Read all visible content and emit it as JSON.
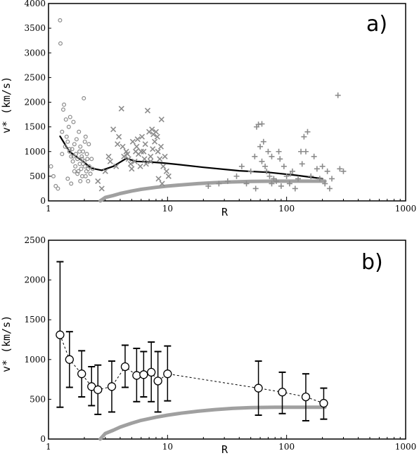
{
  "colors": {
    "data_gray": "#8c8c8c",
    "curve_gray": "#a0a0a0",
    "ink": "#000000"
  },
  "chart_data": [
    {
      "type": "scatter",
      "panel_label": "a)",
      "xlabel": "R",
      "ylabel": "v*  (km/s)",
      "xscale": "log",
      "xlim": [
        1,
        1000
      ],
      "ylim": [
        0,
        4000
      ],
      "xticks": [
        1,
        10,
        100,
        1000
      ],
      "xtick_labels": [
        "1",
        "10",
        "100",
        "1000"
      ],
      "yticks": [
        0,
        500,
        1000,
        1500,
        2000,
        2500,
        3000,
        3500,
        4000
      ],
      "ytick_labels": [
        "0",
        "500",
        "1000",
        "1500",
        "2000",
        "2500",
        "3000",
        "3500",
        "4000"
      ],
      "series": [
        {
          "marker": "circle",
          "x": [
            1.25,
            1.26,
            1.3,
            1.33,
            1.35,
            1.4,
            1.42,
            1.45,
            1.48,
            1.5,
            1.52,
            1.55,
            1.58,
            1.6,
            1.62,
            1.65,
            1.68,
            1.7,
            1.72,
            1.75,
            1.78,
            1.8,
            1.83,
            1.85,
            1.88,
            1.9,
            1.92,
            1.95,
            1.98,
            2.0,
            2.02,
            2.05,
            2.08,
            2.1,
            2.12,
            2.15,
            2.2,
            2.25,
            2.3,
            2.35,
            1.05,
            1.1,
            1.15,
            1.2,
            1.45,
            1.55,
            1.65,
            1.75,
            1.85,
            1.95,
            2.05,
            2.15,
            1.38,
            1.62,
            1.82,
            1.92,
            2.02,
            2.18,
            1.3,
            1.5
          ],
          "y": [
            3660,
            3190,
            1400,
            1850,
            1950,
            1650,
            1300,
            1200,
            1500,
            1000,
            1700,
            900,
            1050,
            800,
            1600,
            1150,
            700,
            950,
            1250,
            850,
            600,
            1400,
            750,
            1100,
            650,
            900,
            500,
            1000,
            2080,
            800,
            700,
            1300,
            600,
            950,
            850,
            400,
            700,
            550,
            850,
            650,
            700,
            500,
            300,
            250,
            450,
            350,
            600,
            550,
            400,
            750,
            500,
            650,
            1100,
            900,
            1000,
            850,
            1200,
            1150,
            950,
            1050
          ]
        },
        {
          "marker": "x",
          "x": [
            2.6,
            2.8,
            3.0,
            3.3,
            3.5,
            3.7,
            3.9,
            4.1,
            4.3,
            4.5,
            4.7,
            4.9,
            5.1,
            5.3,
            5.5,
            5.7,
            5.9,
            6.1,
            6.3,
            6.5,
            6.8,
            7.0,
            7.2,
            7.5,
            7.8,
            8.0,
            8.3,
            8.6,
            8.9,
            9.2,
            9.5,
            9.8,
            10.2,
            4.2,
            5.0,
            6.0,
            7.2,
            8.2,
            9.0,
            3.2,
            3.8,
            4.6,
            5.6,
            6.6,
            7.6,
            8.8,
            5.4,
            6.4,
            7.4,
            8.4
          ],
          "y": [
            400,
            250,
            600,
            800,
            1450,
            700,
            1300,
            1870,
            900,
            1000,
            850,
            750,
            1200,
            800,
            1100,
            950,
            700,
            1300,
            1000,
            1150,
            1830,
            1400,
            900,
            1050,
            1200,
            1400,
            1000,
            850,
            1650,
            700,
            900,
            600,
            500,
            1100,
            650,
            1000,
            800,
            1300,
            350,
            900,
            1150,
            950,
            1250,
            750,
            1350,
            1100,
            1000,
            850,
            1450,
            450
          ]
        },
        {
          "marker": "plus",
          "x": [
            22,
            27,
            32,
            38,
            42,
            46,
            50,
            54,
            56,
            58,
            60,
            62,
            64,
            66,
            68,
            70,
            72,
            75,
            78,
            82,
            86,
            90,
            95,
            100,
            106,
            112,
            118,
            125,
            132,
            140,
            150,
            160,
            170,
            180,
            190,
            200,
            210,
            220,
            230,
            240,
            270,
            280,
            300,
            145,
            62,
            88,
            108,
            135,
            55,
            75
          ],
          "y": [
            300,
            350,
            400,
            500,
            700,
            350,
            600,
            900,
            1500,
            1550,
            1100,
            800,
            1200,
            700,
            600,
            1000,
            500,
            900,
            450,
            400,
            1000,
            300,
            700,
            500,
            350,
            600,
            250,
            450,
            1000,
            1300,
            1400,
            500,
            900,
            650,
            450,
            700,
            350,
            600,
            250,
            450,
            2140,
            650,
            600,
            1000,
            1560,
            850,
            550,
            750,
            250,
            350
          ]
        }
      ],
      "lines": [
        {
          "name": "mean",
          "color": "#000000",
          "x": [
            1.25,
            1.5,
            1.9,
            2.3,
            2.8,
            3.5,
            4.5,
            5.5,
            7.0,
            9.0,
            12,
            20,
            40,
            70,
            120,
            200
          ],
          "y": [
            1310,
            1000,
            820,
            660,
            620,
            700,
            860,
            800,
            790,
            770,
            740,
            680,
            610,
            580,
            520,
            450
          ]
        },
        {
          "name": "model",
          "color": "#a0a0a0",
          "x": [
            2.72,
            3.0,
            3.5,
            4.0,
            5.0,
            6.0,
            8.0,
            10,
            13,
            18,
            25,
            35,
            50,
            80,
            130,
            210
          ],
          "y": [
            0,
            70,
            110,
            150,
            200,
            235,
            275,
            300,
            325,
            350,
            370,
            385,
            395,
            400,
            400,
            400
          ]
        }
      ]
    },
    {
      "type": "line",
      "panel_label": "b)",
      "xlabel": "R",
      "ylabel": "v*  (km/s)",
      "xscale": "log",
      "xlim": [
        1,
        1000
      ],
      "ylim": [
        0,
        2500
      ],
      "xticks": [
        1,
        10,
        100,
        1000
      ],
      "xtick_labels": [
        "1",
        "10",
        "100",
        "1000"
      ],
      "yticks": [
        0,
        500,
        1000,
        1500,
        2000,
        2500
      ],
      "ytick_labels": [
        "0",
        "500",
        "1000",
        "1500",
        "2000",
        "2500"
      ],
      "series": [
        {
          "marker": "open-circle",
          "dashed": true,
          "x": [
            1.25,
            1.5,
            1.9,
            2.3,
            2.6,
            3.4,
            4.4,
            5.5,
            6.3,
            7.3,
            8.3,
            10,
            58,
            92,
            145,
            205
          ],
          "y": [
            1310,
            1000,
            820,
            660,
            620,
            660,
            910,
            800,
            810,
            840,
            730,
            820,
            640,
            590,
            530,
            450
          ],
          "err_low": [
            400,
            650,
            530,
            420,
            310,
            340,
            650,
            470,
            530,
            470,
            340,
            480,
            300,
            320,
            230,
            250
          ],
          "err_high": [
            2230,
            1350,
            1110,
            910,
            930,
            980,
            1180,
            1140,
            1100,
            1220,
            1100,
            1170,
            980,
            840,
            820,
            640
          ]
        }
      ],
      "lines": [
        {
          "name": "model",
          "color": "#a0a0a0",
          "x": [
            2.72,
            3.0,
            3.5,
            4.0,
            5.0,
            6.0,
            8.0,
            10,
            13,
            18,
            25,
            35,
            50,
            80,
            130,
            210
          ],
          "y": [
            0,
            70,
            110,
            150,
            200,
            235,
            275,
            300,
            325,
            350,
            370,
            385,
            395,
            400,
            400,
            400
          ]
        }
      ]
    }
  ]
}
